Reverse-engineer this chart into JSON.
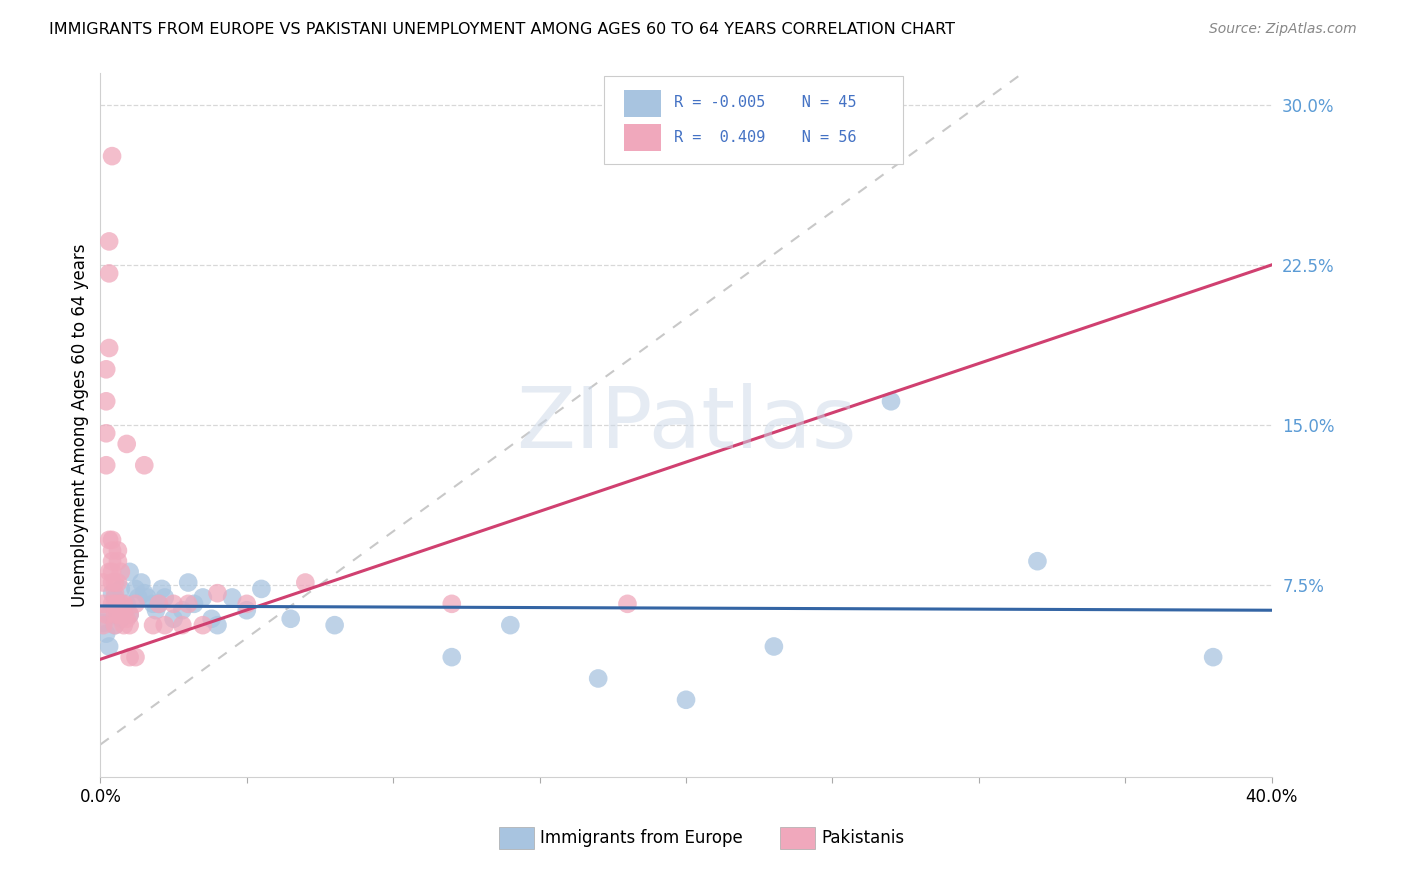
{
  "title": "IMMIGRANTS FROM EUROPE VS PAKISTANI UNEMPLOYMENT AMONG AGES 60 TO 64 YEARS CORRELATION CHART",
  "source": "Source: ZipAtlas.com",
  "ylabel": "Unemployment Among Ages 60 to 64 years",
  "xlim": [
    0.0,
    0.4
  ],
  "ylim": [
    -0.015,
    0.315
  ],
  "legend_r_blue": "-0.005",
  "legend_n_blue": "45",
  "legend_r_pink": "0.409",
  "legend_n_pink": "56",
  "blue_fill": "#a8c4e0",
  "pink_fill": "#f0a8bc",
  "blue_line": "#3465a4",
  "pink_line": "#d04070",
  "diag_color": "#c8c8c8",
  "grid_color": "#d8d8d8",
  "watermark": "ZIPatlas",
  "blue_scatter": [
    [
      0.001,
      0.057
    ],
    [
      0.002,
      0.052
    ],
    [
      0.003,
      0.061
    ],
    [
      0.003,
      0.046
    ],
    [
      0.004,
      0.071
    ],
    [
      0.005,
      0.056
    ],
    [
      0.005,
      0.069
    ],
    [
      0.006,
      0.061
    ],
    [
      0.006,
      0.066
    ],
    [
      0.007,
      0.073
    ],
    [
      0.007,
      0.059
    ],
    [
      0.008,
      0.063
    ],
    [
      0.009,
      0.066
    ],
    [
      0.01,
      0.081
    ],
    [
      0.01,
      0.061
    ],
    [
      0.012,
      0.073
    ],
    [
      0.013,
      0.069
    ],
    [
      0.014,
      0.076
    ],
    [
      0.015,
      0.071
    ],
    [
      0.016,
      0.069
    ],
    [
      0.018,
      0.066
    ],
    [
      0.019,
      0.063
    ],
    [
      0.02,
      0.066
    ],
    [
      0.021,
      0.073
    ],
    [
      0.022,
      0.069
    ],
    [
      0.025,
      0.059
    ],
    [
      0.028,
      0.063
    ],
    [
      0.03,
      0.076
    ],
    [
      0.032,
      0.066
    ],
    [
      0.035,
      0.069
    ],
    [
      0.038,
      0.059
    ],
    [
      0.04,
      0.056
    ],
    [
      0.045,
      0.069
    ],
    [
      0.05,
      0.063
    ],
    [
      0.055,
      0.073
    ],
    [
      0.065,
      0.059
    ],
    [
      0.08,
      0.056
    ],
    [
      0.12,
      0.041
    ],
    [
      0.14,
      0.056
    ],
    [
      0.17,
      0.031
    ],
    [
      0.2,
      0.021
    ],
    [
      0.23,
      0.046
    ],
    [
      0.27,
      0.161
    ],
    [
      0.32,
      0.086
    ],
    [
      0.38,
      0.041
    ]
  ],
  "pink_scatter": [
    [
      0.001,
      0.056
    ],
    [
      0.001,
      0.066
    ],
    [
      0.001,
      0.076
    ],
    [
      0.002,
      0.061
    ],
    [
      0.002,
      0.131
    ],
    [
      0.002,
      0.146
    ],
    [
      0.002,
      0.161
    ],
    [
      0.002,
      0.176
    ],
    [
      0.003,
      0.186
    ],
    [
      0.003,
      0.221
    ],
    [
      0.003,
      0.236
    ],
    [
      0.003,
      0.081
    ],
    [
      0.003,
      0.096
    ],
    [
      0.004,
      0.066
    ],
    [
      0.004,
      0.076
    ],
    [
      0.004,
      0.081
    ],
    [
      0.004,
      0.086
    ],
    [
      0.004,
      0.091
    ],
    [
      0.004,
      0.096
    ],
    [
      0.004,
      0.276
    ],
    [
      0.005,
      0.056
    ],
    [
      0.005,
      0.061
    ],
    [
      0.005,
      0.066
    ],
    [
      0.005,
      0.071
    ],
    [
      0.005,
      0.076
    ],
    [
      0.006,
      0.061
    ],
    [
      0.006,
      0.066
    ],
    [
      0.006,
      0.076
    ],
    [
      0.006,
      0.086
    ],
    [
      0.006,
      0.091
    ],
    [
      0.007,
      0.061
    ],
    [
      0.007,
      0.066
    ],
    [
      0.007,
      0.081
    ],
    [
      0.008,
      0.056
    ],
    [
      0.008,
      0.061
    ],
    [
      0.008,
      0.066
    ],
    [
      0.009,
      0.059
    ],
    [
      0.009,
      0.141
    ],
    [
      0.01,
      0.056
    ],
    [
      0.01,
      0.061
    ],
    [
      0.01,
      0.041
    ],
    [
      0.012,
      0.066
    ],
    [
      0.012,
      0.041
    ],
    [
      0.015,
      0.131
    ],
    [
      0.018,
      0.056
    ],
    [
      0.02,
      0.066
    ],
    [
      0.022,
      0.056
    ],
    [
      0.025,
      0.066
    ],
    [
      0.028,
      0.056
    ],
    [
      0.03,
      0.066
    ],
    [
      0.035,
      0.056
    ],
    [
      0.04,
      0.071
    ],
    [
      0.05,
      0.066
    ],
    [
      0.07,
      0.076
    ],
    [
      0.12,
      0.066
    ],
    [
      0.18,
      0.066
    ]
  ],
  "pink_trend_x": [
    0.0,
    0.4
  ],
  "pink_trend_y": [
    0.04,
    0.225
  ],
  "blue_trend_x": [
    0.0,
    0.4
  ],
  "blue_trend_y": [
    0.065,
    0.063
  ]
}
